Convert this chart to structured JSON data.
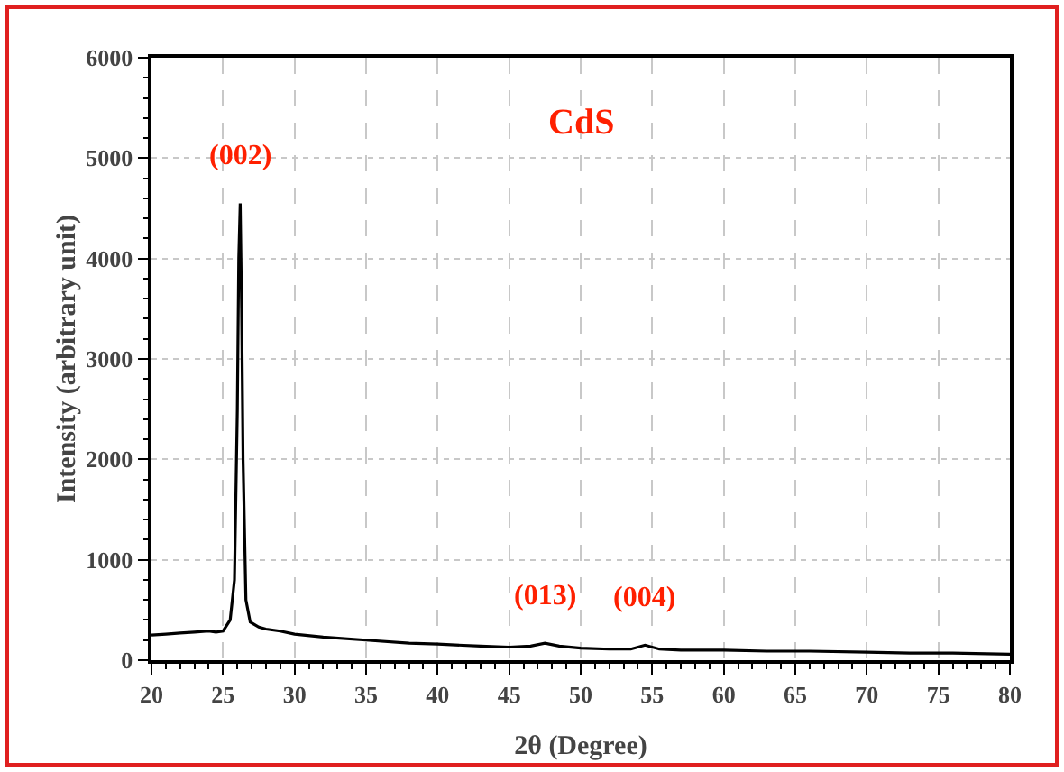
{
  "chart_data": {
    "type": "line",
    "xlabel": "2θ (Degree)",
    "ylabel": "Intensity (arbitrary unit)",
    "annotations": [
      "CdS",
      {
        "text": "(002)",
        "x": 26.2,
        "y": 4550
      },
      {
        "text": "(013)",
        "x": 47.5,
        "y": 170
      },
      {
        "text": "(004)",
        "x": 54.5,
        "y": 150
      }
    ],
    "x": [
      20,
      21,
      22,
      23,
      24,
      24.5,
      25,
      25.5,
      25.8,
      26,
      26.1,
      26.2,
      26.3,
      26.4,
      26.6,
      26.9,
      27.5,
      28,
      29,
      30,
      32,
      35,
      38,
      40,
      43,
      45,
      46.5,
      47.5,
      48.5,
      50,
      52,
      53.5,
      54.5,
      55.5,
      57,
      60,
      63,
      66,
      70,
      73,
      76,
      80
    ],
    "series": [
      {
        "color": "#000000",
        "values": [
          250,
          260,
          270,
          280,
          290,
          280,
          290,
          400,
          800,
          2500,
          4000,
          4550,
          3500,
          2000,
          600,
          380,
          330,
          310,
          290,
          260,
          230,
          200,
          170,
          160,
          140,
          130,
          140,
          170,
          140,
          120,
          110,
          110,
          150,
          110,
          100,
          100,
          90,
          90,
          80,
          70,
          70,
          60
        ]
      }
    ],
    "xlim": [
      20,
      80
    ],
    "xticks": [
      20,
      25,
      30,
      35,
      40,
      45,
      50,
      55,
      60,
      65,
      70,
      75,
      80
    ],
    "ylim": [
      0,
      6000
    ],
    "yticks": [
      0,
      1000,
      2000,
      3000,
      4000,
      5000,
      6000
    ],
    "grid": true,
    "marker": "none",
    "line_style": "solid"
  }
}
